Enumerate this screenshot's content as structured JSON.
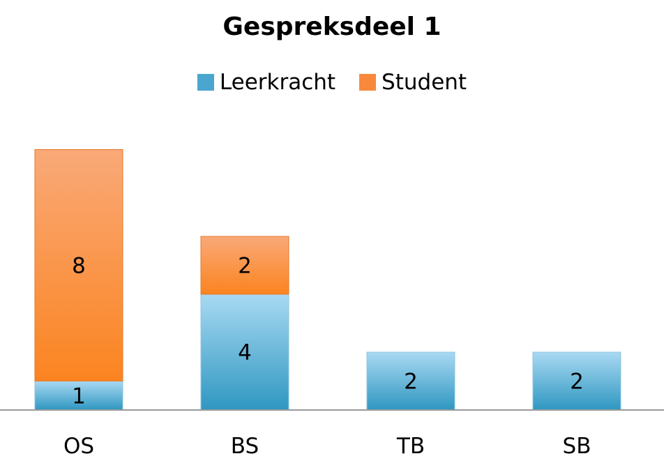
{
  "chart_data": {
    "type": "bar",
    "stacked": true,
    "title": "Gespreksdeel 1",
    "categories": [
      "OS",
      "BS",
      "TB",
      "SB"
    ],
    "series": [
      {
        "name": "Leerkracht",
        "values": [
          1,
          4,
          2,
          2
        ],
        "color": "#4aa6cf"
      },
      {
        "name": "Student",
        "values": [
          8,
          2,
          0,
          0
        ],
        "color": "#f9893a"
      }
    ],
    "legend": "top",
    "grid": false,
    "ylim": [
      0,
      9
    ],
    "xlabel": "",
    "ylabel": ""
  }
}
